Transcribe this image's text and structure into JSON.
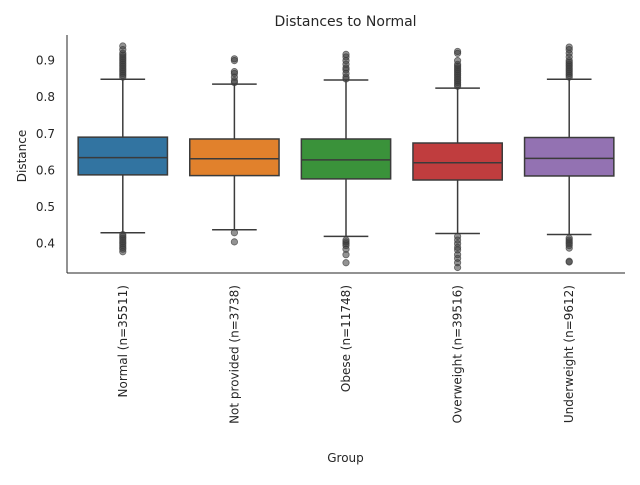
{
  "chart_data": {
    "type": "box",
    "title": "Distances to Normal",
    "xlabel": "Group",
    "ylabel": "Distance",
    "ylim": [
      0.32,
      0.97
    ],
    "yticks": [
      0.4,
      0.5,
      0.6,
      0.7,
      0.8,
      0.9
    ],
    "ytick_labels": [
      "0.4",
      "0.5",
      "0.6",
      "0.7",
      "0.8",
      "0.9"
    ],
    "grid": false,
    "categories": [
      "Normal (n=35511)",
      "Not provided (n=3738)",
      "Obese (n=11748)",
      "Overweight (n=39516)",
      "Underweight (n=9612)"
    ],
    "series": [
      {
        "color": "#3274a1",
        "whisker_low": 0.43,
        "q1": 0.588,
        "median": 0.635,
        "q3": 0.691,
        "whisker_high": 0.849,
        "outliers": [
          0.378,
          0.385,
          0.39,
          0.395,
          0.4,
          0.405,
          0.41,
          0.415,
          0.42,
          0.425,
          0.855,
          0.86,
          0.865,
          0.87,
          0.875,
          0.88,
          0.885,
          0.89,
          0.895,
          0.9,
          0.905,
          0.91,
          0.915,
          0.92,
          0.93,
          0.94
        ]
      },
      {
        "color": "#e1812c",
        "whisker_low": 0.438,
        "q1": 0.586,
        "median": 0.632,
        "q3": 0.686,
        "whisker_high": 0.836,
        "outliers": [
          0.405,
          0.43,
          0.84,
          0.845,
          0.855,
          0.865,
          0.87,
          0.9,
          0.905
        ]
      },
      {
        "color": "#3a923a",
        "whisker_low": 0.42,
        "q1": 0.577,
        "median": 0.629,
        "q3": 0.686,
        "whisker_high": 0.847,
        "outliers": [
          0.348,
          0.37,
          0.385,
          0.395,
          0.4,
          0.405,
          0.41,
          0.85,
          0.855,
          0.865,
          0.875,
          0.88,
          0.89,
          0.9,
          0.91,
          0.917
        ]
      },
      {
        "color": "#c03d3e",
        "whisker_low": 0.428,
        "q1": 0.574,
        "median": 0.621,
        "q3": 0.675,
        "whisker_high": 0.825,
        "outliers": [
          0.335,
          0.348,
          0.36,
          0.37,
          0.383,
          0.39,
          0.4,
          0.41,
          0.42,
          0.83,
          0.835,
          0.84,
          0.845,
          0.85,
          0.855,
          0.86,
          0.865,
          0.87,
          0.875,
          0.88,
          0.885,
          0.89,
          0.9,
          0.92,
          0.925
        ]
      },
      {
        "color": "#9372b2",
        "whisker_low": 0.425,
        "q1": 0.585,
        "median": 0.633,
        "q3": 0.69,
        "whisker_high": 0.849,
        "outliers": [
          0.35,
          0.352,
          0.388,
          0.395,
          0.4,
          0.405,
          0.41,
          0.415,
          0.855,
          0.86,
          0.865,
          0.87,
          0.875,
          0.88,
          0.885,
          0.89,
          0.895,
          0.9,
          0.91,
          0.92,
          0.93,
          0.937
        ]
      }
    ]
  }
}
